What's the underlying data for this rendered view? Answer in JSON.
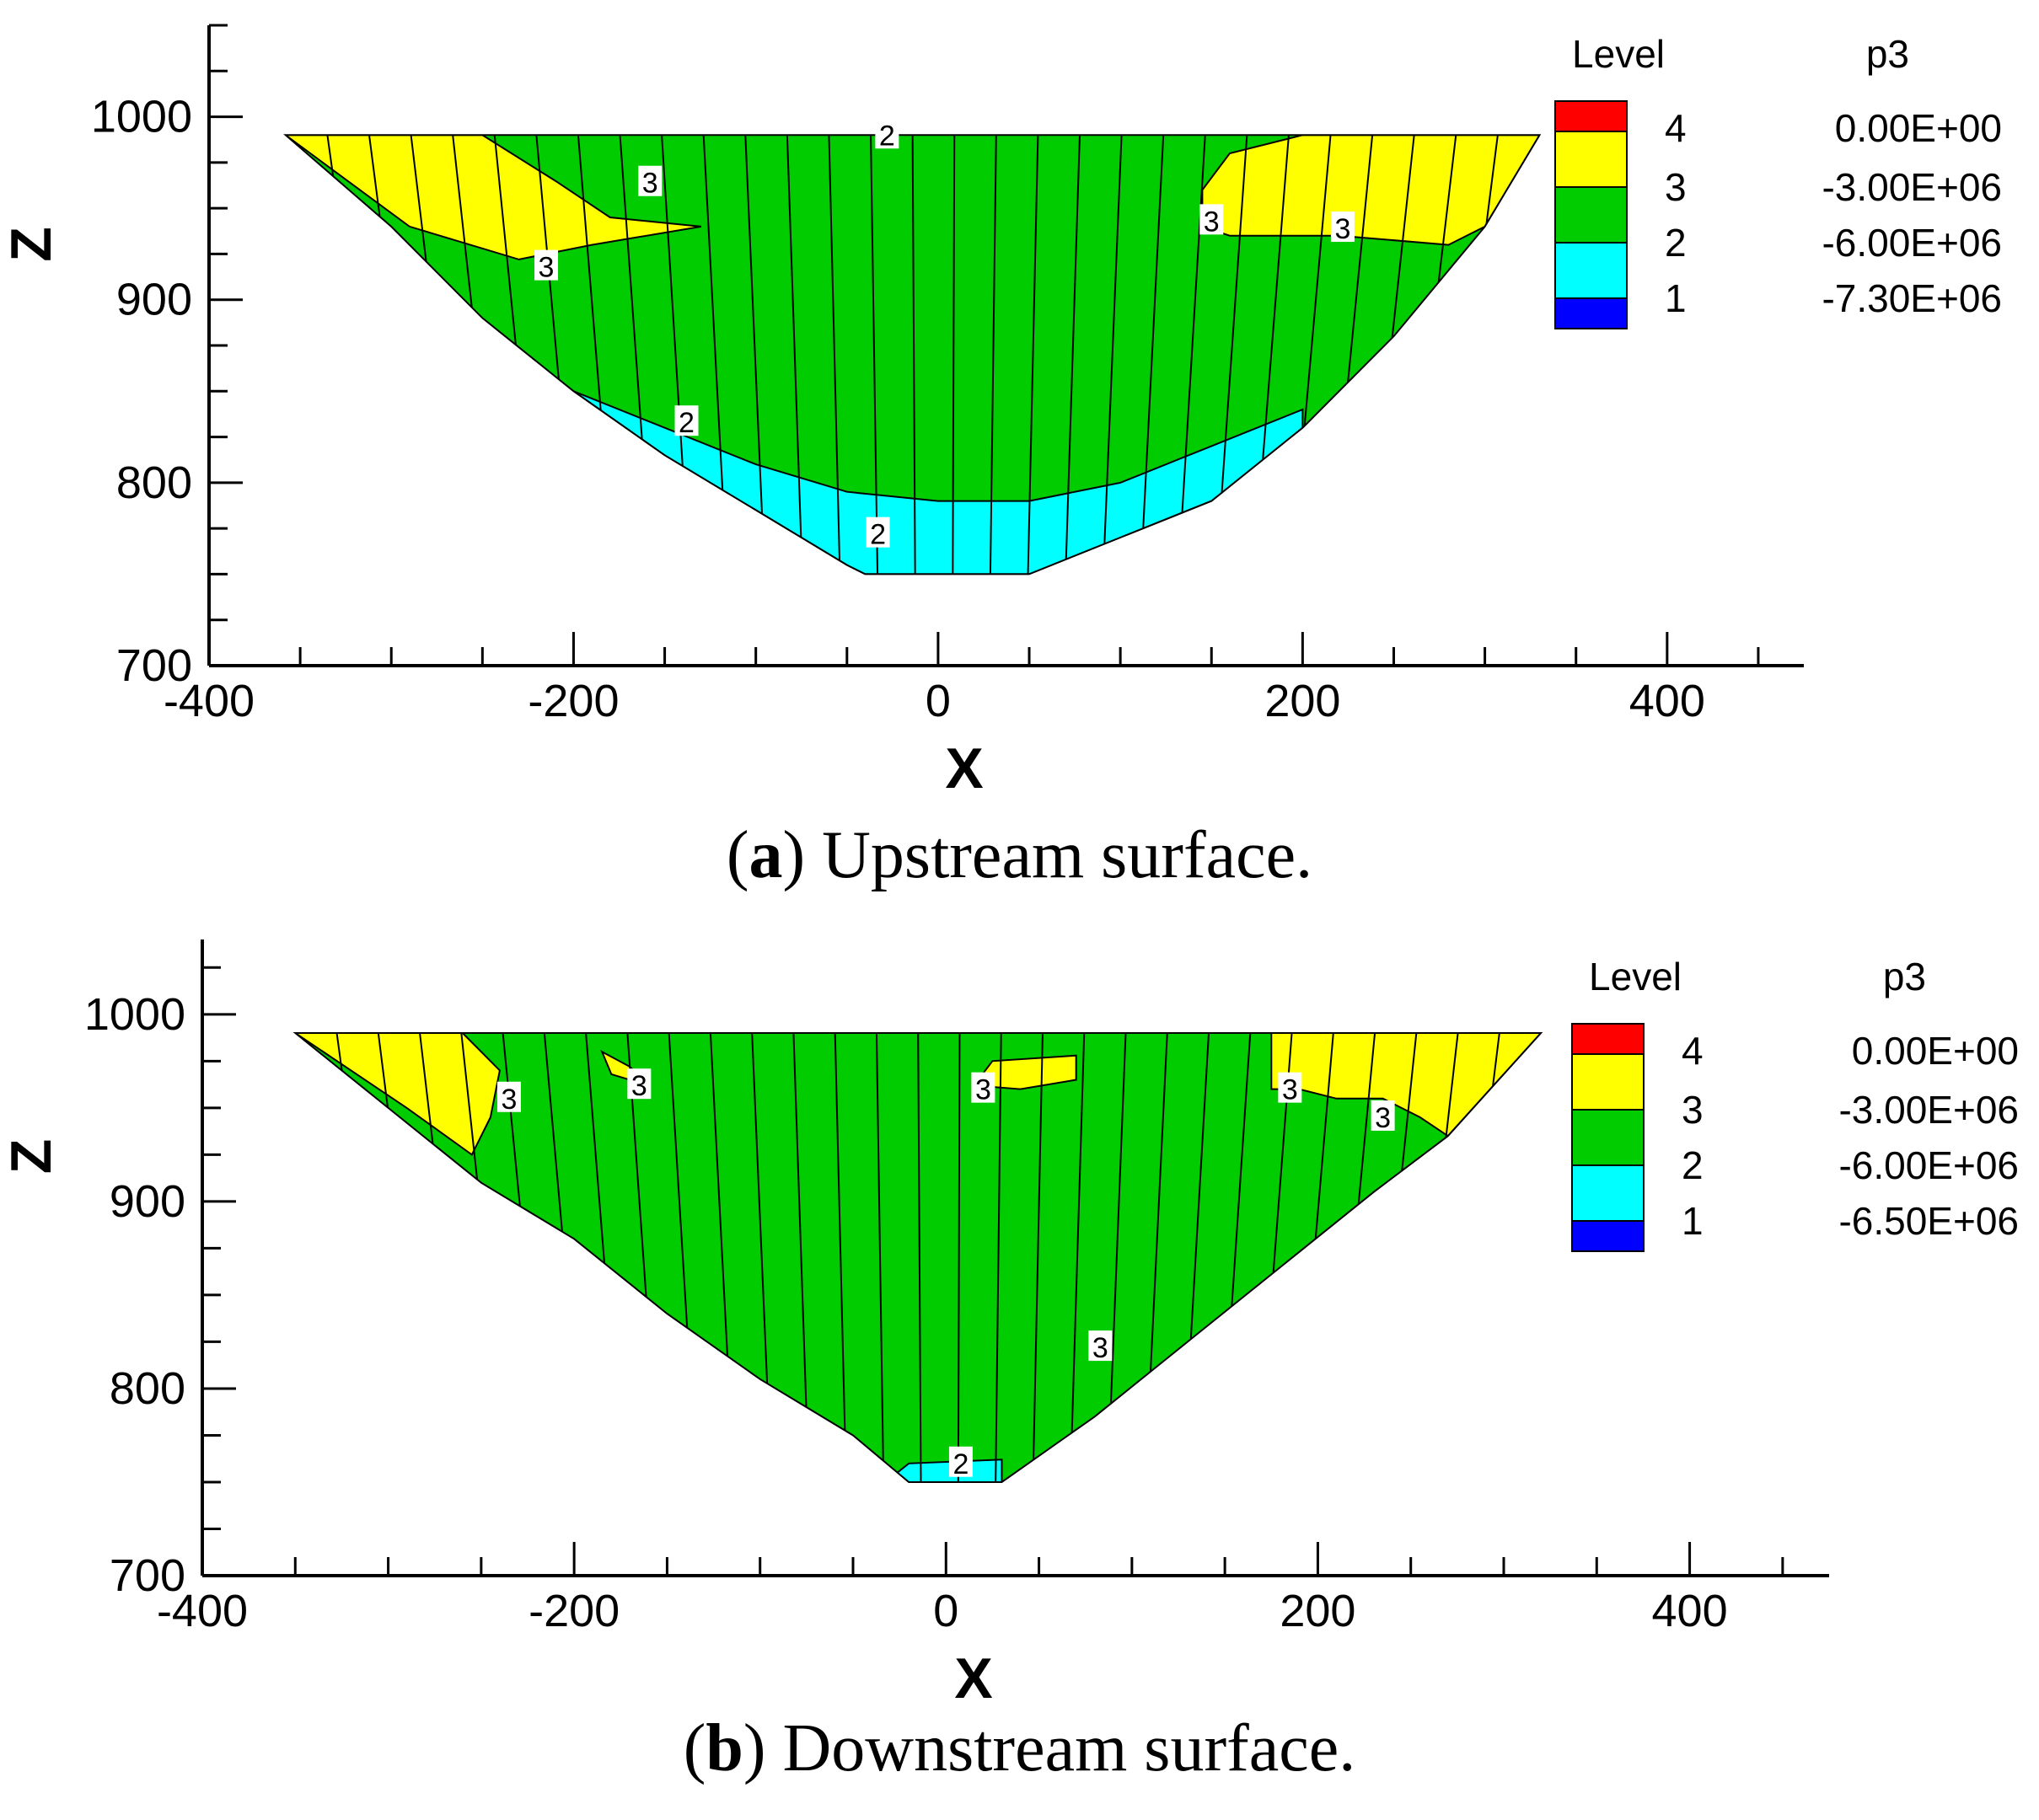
{
  "colors": {
    "level4": "#ff0000",
    "level3": "#ffff00",
    "level2": "#00cc00",
    "level1": "#00ffff",
    "below1": "#0000ff",
    "line": "#000000"
  },
  "chart_data": [
    {
      "type": "contour",
      "caption_letter": "a",
      "caption_text": ") Upstream surface.",
      "caption_open": "(",
      "xlabel": "X",
      "ylabel": "Z",
      "xlim": [
        -400,
        475
      ],
      "ylim": [
        700,
        1050
      ],
      "xticks": [
        "-400",
        "-200",
        "0",
        "200",
        "400"
      ],
      "xtick_values": [
        -400,
        -200,
        0,
        200,
        400
      ],
      "yticks": [
        "700",
        "800",
        "900",
        "1000"
      ],
      "ytick_values": [
        700,
        800,
        900,
        1000
      ],
      "legend": {
        "header_level": "Level",
        "header_var": "p3",
        "levels": [
          "4",
          "3",
          "2",
          "1"
        ],
        "values": [
          "0.00E+00",
          "-3.00E+06",
          "-6.00E+06",
          "-7.30E+06"
        ]
      },
      "crest_z": 990,
      "base_z": 750,
      "left_x": -358,
      "right_x": 330,
      "boundary": [
        [
          -358,
          990
        ],
        [
          -300,
          940
        ],
        [
          -250,
          890
        ],
        [
          -200,
          850
        ],
        [
          -150,
          815
        ],
        [
          -100,
          785
        ],
        [
          -50,
          755
        ],
        [
          -40,
          750
        ],
        [
          50,
          750
        ],
        [
          100,
          770
        ],
        [
          150,
          790
        ],
        [
          200,
          830
        ],
        [
          250,
          880
        ],
        [
          300,
          940
        ],
        [
          330,
          990
        ]
      ],
      "regions": [
        {
          "level": 3,
          "points": [
            [
              -358,
              990
            ],
            [
              -250,
              990
            ],
            [
              -210,
              965
            ],
            [
              -180,
              945
            ],
            [
              -130,
              940
            ],
            [
              -190,
              930
            ],
            [
              -230,
              922
            ],
            [
              -290,
              940
            ]
          ]
        },
        {
          "level": 3,
          "points": [
            [
              145,
              960
            ],
            [
              160,
              980
            ],
            [
              200,
              990
            ],
            [
              330,
              990
            ],
            [
              300,
              940
            ],
            [
              280,
              930
            ],
            [
              220,
              935
            ],
            [
              160,
              935
            ],
            [
              145,
              940
            ]
          ]
        },
        {
          "level": 1,
          "points": [
            [
              -200,
              850
            ],
            [
              -150,
              830
            ],
            [
              -100,
              810
            ],
            [
              -50,
              795
            ],
            [
              0,
              790
            ],
            [
              50,
              790
            ],
            [
              100,
              800
            ],
            [
              150,
              820
            ],
            [
              200,
              840
            ],
            [
              200,
              830
            ],
            [
              150,
              790
            ],
            [
              100,
              770
            ],
            [
              50,
              750
            ],
            [
              -40,
              750
            ],
            [
              -50,
              755
            ],
            [
              -100,
              785
            ],
            [
              -150,
              815
            ]
          ]
        }
      ],
      "contour_labels": [
        {
          "text": "2",
          "x": -28,
          "z": 990
        },
        {
          "text": "3",
          "x": -158,
          "z": 964
        },
        {
          "text": "3",
          "x": -215,
          "z": 918
        },
        {
          "text": "3",
          "x": 150,
          "z": 943
        },
        {
          "text": "3",
          "x": 222,
          "z": 939
        },
        {
          "text": "2",
          "x": -138,
          "z": 833
        },
        {
          "text": "2",
          "x": -33,
          "z": 772
        }
      ]
    },
    {
      "type": "contour",
      "caption_letter": "b",
      "caption_text": ") Downstream surface.",
      "caption_open": "(",
      "xlabel": "X",
      "ylabel": "Z",
      "xlim": [
        -400,
        475
      ],
      "ylim": [
        700,
        1040
      ],
      "xticks": [
        "-400",
        "-200",
        "0",
        "200",
        "400"
      ],
      "xtick_values": [
        -400,
        -200,
        0,
        200,
        400
      ],
      "yticks": [
        "700",
        "800",
        "900",
        "1000"
      ],
      "ytick_values": [
        700,
        800,
        900,
        1000
      ],
      "legend": {
        "header_level": "Level",
        "header_var": "p3",
        "levels": [
          "4",
          "3",
          "2",
          "1"
        ],
        "values": [
          "0.00E+00",
          "-3.00E+06",
          "-6.00E+06",
          "-6.50E+06"
        ]
      },
      "crest_z": 990,
      "base_z": 750,
      "left_x": -350,
      "right_x": 320,
      "boundary": [
        [
          -350,
          990
        ],
        [
          -300,
          950
        ],
        [
          -250,
          910
        ],
        [
          -200,
          880
        ],
        [
          -150,
          840
        ],
        [
          -100,
          805
        ],
        [
          -50,
          775
        ],
        [
          -20,
          750
        ],
        [
          30,
          750
        ],
        [
          80,
          785
        ],
        [
          130,
          825
        ],
        [
          180,
          865
        ],
        [
          230,
          905
        ],
        [
          270,
          935
        ],
        [
          320,
          990
        ]
      ],
      "regions": [
        {
          "level": 3,
          "points": [
            [
              -350,
              990
            ],
            [
              -260,
              990
            ],
            [
              -240,
              970
            ],
            [
              -245,
              945
            ],
            [
              -255,
              925
            ],
            [
              -290,
              950
            ]
          ]
        },
        {
          "level": 3,
          "points": [
            [
              -185,
              980
            ],
            [
              -170,
              972
            ],
            [
              -160,
              962
            ],
            [
              -180,
              968
            ]
          ]
        },
        {
          "level": 3,
          "points": [
            [
              15,
              962
            ],
            [
              25,
              975
            ],
            [
              70,
              978
            ],
            [
              70,
              965
            ],
            [
              40,
              960
            ]
          ]
        },
        {
          "level": 3,
          "points": [
            [
              175,
              990
            ],
            [
              320,
              990
            ],
            [
              270,
              935
            ],
            [
              255,
              945
            ],
            [
              235,
              955
            ],
            [
              210,
              955
            ],
            [
              190,
              960
            ],
            [
              175,
              960
            ]
          ]
        },
        {
          "level": 1,
          "points": [
            [
              -30,
              752
            ],
            [
              -20,
              760
            ],
            [
              30,
              762
            ],
            [
              30,
              750
            ],
            [
              -20,
              750
            ]
          ]
        }
      ],
      "contour_labels": [
        {
          "text": "3",
          "x": -235,
          "z": 955
        },
        {
          "text": "3",
          "x": -165,
          "z": 962
        },
        {
          "text": "3",
          "x": 20,
          "z": 960
        },
        {
          "text": "3",
          "x": 185,
          "z": 960
        },
        {
          "text": "3",
          "x": 235,
          "z": 945
        },
        {
          "text": "3",
          "x": 83,
          "z": 822
        },
        {
          "text": "2",
          "x": 8,
          "z": 760
        }
      ]
    }
  ]
}
